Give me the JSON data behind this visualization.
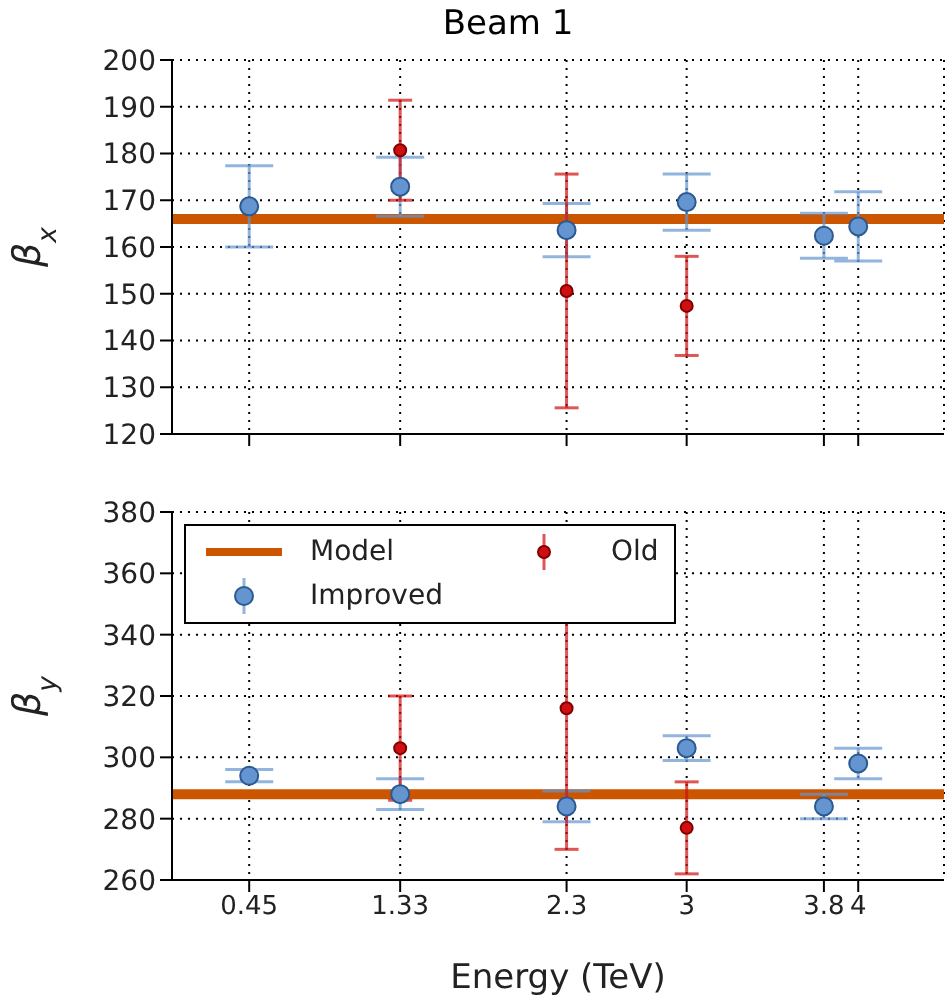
{
  "chart_data": [
    {
      "type": "scatter",
      "title": "Beam 1",
      "ylabel": "β$_{x}$",
      "xlim": [
        0,
        4.5
      ],
      "xticks": [
        0.45,
        1.33,
        2.3,
        3,
        3.8,
        4
      ],
      "ylim": [
        120,
        200
      ],
      "yticks": [
        120,
        130,
        140,
        150,
        160,
        170,
        180,
        190,
        200
      ],
      "grid": true,
      "marker": "circle",
      "tick_labels": "y",
      "series": [
        {
          "type": "line",
          "color": "#cc5500",
          "marker": "none",
          "x": [
            0,
            4.5
          ],
          "values": [
            166,
            166
          ]
        },
        {
          "type": "scatter",
          "color": "#6495d0",
          "x": [
            0.45,
            1.33,
            2.3,
            3,
            3.8,
            4
          ],
          "values": [
            168.7,
            172.9,
            163.6,
            169.6,
            162.4,
            164.4
          ],
          "errors": [
            8.7,
            6.3,
            5.7,
            6,
            4.8,
            7.4
          ]
        },
        {
          "type": "scatter",
          "color": "#d01010",
          "x": [
            1.33,
            2.3,
            3
          ],
          "values": [
            180.7,
            150.6,
            147.4
          ],
          "errors": [
            10.7,
            25,
            10.6
          ]
        }
      ]
    },
    {
      "type": "scatter",
      "xlabel": "Energy (TeV)",
      "ylabel": "β$_{y}$",
      "xlim": [
        0,
        4.5
      ],
      "xticks": [
        0.45,
        1.33,
        2.3,
        3,
        3.8,
        4
      ],
      "ylim": [
        260,
        380
      ],
      "yticks": [
        260,
        280,
        300,
        320,
        340,
        360,
        380
      ],
      "grid": true,
      "marker": "circle",
      "legend": "top left",
      "series": [
        {
          "name": "Model",
          "type": "line",
          "color": "#cc5500",
          "marker": "none",
          "x": [
            0,
            4.5
          ],
          "values": [
            288,
            288
          ]
        },
        {
          "name": "Improved",
          "type": "scatter",
          "color": "#6495d0",
          "x": [
            0.45,
            1.33,
            2.3,
            3,
            3.8,
            4
          ],
          "values": [
            294,
            288,
            284,
            303,
            284,
            298
          ],
          "errors": [
            2,
            5,
            5,
            4,
            4,
            5
          ]
        },
        {
          "name": "Old",
          "type": "scatter",
          "color": "#d01010",
          "x": [
            1.33,
            2.3,
            3
          ],
          "values": [
            303,
            316,
            277
          ],
          "errors": [
            17,
            46,
            15
          ]
        }
      ]
    }
  ]
}
